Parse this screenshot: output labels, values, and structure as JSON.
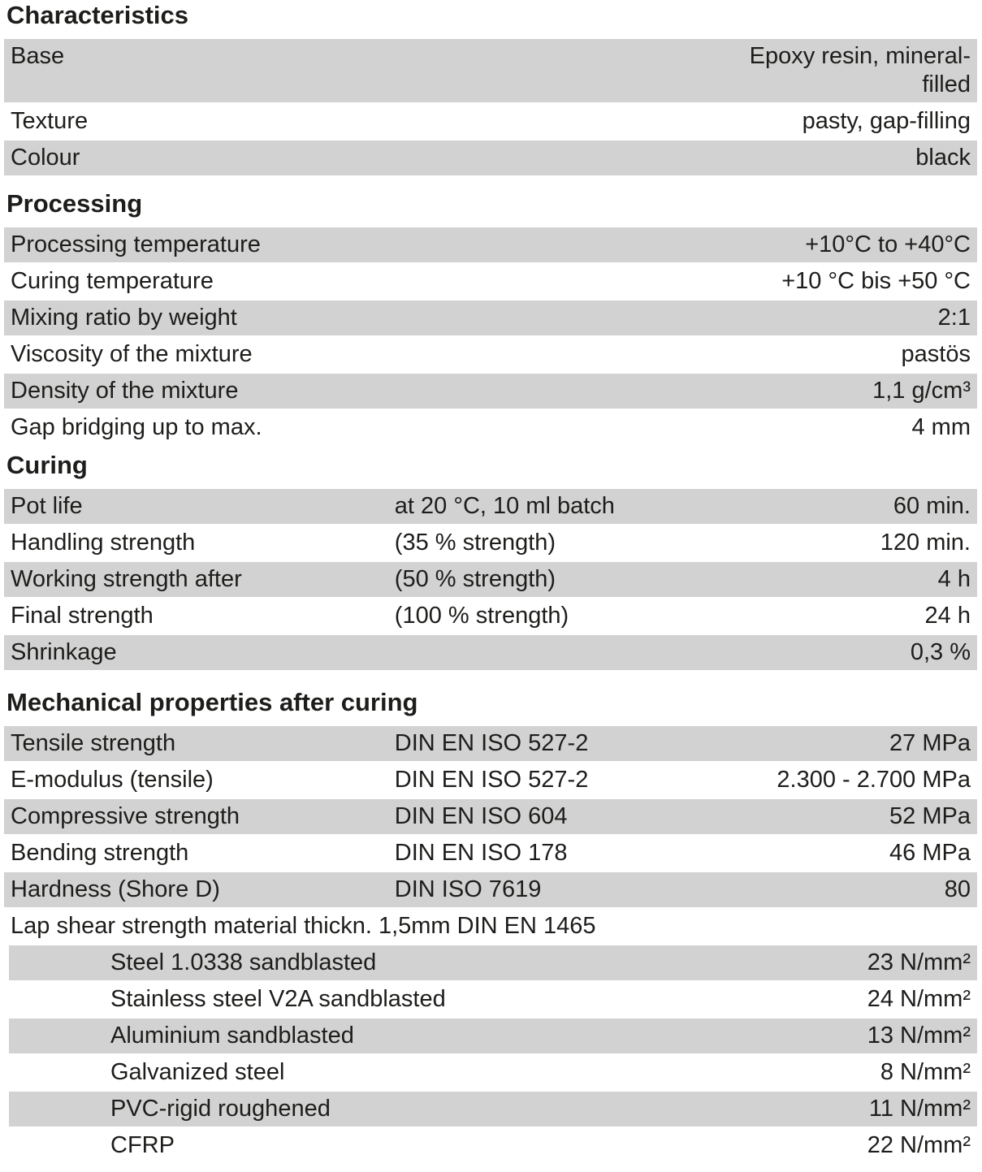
{
  "colors": {
    "row_shading": "#d2d2d2",
    "text": "#1d1d1b"
  },
  "sections": [
    {
      "heading": "Characteristics",
      "rows": [
        {
          "label": "Base",
          "mid": "",
          "value": "Epoxy resin, mineral-filled"
        },
        {
          "label": "Texture",
          "mid": "",
          "value": "pasty, gap-filling"
        },
        {
          "label": "Colour",
          "mid": "",
          "value": "black"
        }
      ]
    },
    {
      "heading": "Processing",
      "rows": [
        {
          "label": "Processing temperature",
          "mid": "",
          "value": "+10°C to +40°C"
        },
        {
          "label": "Curing temperature",
          "mid": "",
          "value": "+10 °C bis +50 °C"
        },
        {
          "label": "Mixing ratio by weight",
          "mid": "",
          "value": "2:1"
        },
        {
          "label": "Viscosity of the mixture",
          "mid": "",
          "value": "pastös"
        },
        {
          "label": "Density of the mixture",
          "mid": "",
          "value": "1,1 g/cm³"
        },
        {
          "label": "Gap bridging up to max.",
          "mid": "",
          "value": "4 mm"
        }
      ]
    },
    {
      "heading": "Curing",
      "rows": [
        {
          "label": "Pot life",
          "mid": "at 20 °C, 10 ml batch",
          "value": "60 min."
        },
        {
          "label": "Handling strength",
          "mid": "(35 % strength)",
          "value": "120 min."
        },
        {
          "label": "Working strength after",
          "mid": "(50 % strength)",
          "value": "4 h"
        },
        {
          "label": "Final strength",
          "mid": "(100 % strength)",
          "value": "24 h"
        },
        {
          "label": "Shrinkage",
          "mid": "",
          "value": "0,3 %"
        }
      ]
    },
    {
      "heading": "Mechanical properties after curing",
      "rows": [
        {
          "label": "Tensile strength",
          "mid": "DIN EN ISO 527-2",
          "value": "27 MPa"
        },
        {
          "label": "E-modulus (tensile)",
          "mid": "DIN EN ISO 527-2",
          "value": "2.300 - 2.700 MPa"
        },
        {
          "label": "Compressive strength",
          "mid": "DIN EN ISO 604",
          "value": "52 MPa"
        },
        {
          "label": "Bending strength",
          "mid": "DIN EN ISO 178",
          "value": "46 MPa"
        },
        {
          "label": "Hardness (Shore D)",
          "mid": "DIN ISO 7619",
          "value": "80"
        }
      ],
      "lap_shear_heading": "Lap shear strength material thickn. 1,5mm DIN EN 1465",
      "lap_shear_rows": [
        {
          "label": "Steel 1.0338 sandblasted",
          "value": "23 N/mm²"
        },
        {
          "label": "Stainless steel V2A sandblasted",
          "value": "24 N/mm²"
        },
        {
          "label": "Aluminium sandblasted",
          "value": "13 N/mm²"
        },
        {
          "label": "Galvanized steel",
          "value": "8 N/mm²"
        },
        {
          "label": "PVC-rigid roughened",
          "value": "11 N/mm²"
        },
        {
          "label": "CFRP",
          "value": "22 N/mm²"
        }
      ]
    }
  ]
}
